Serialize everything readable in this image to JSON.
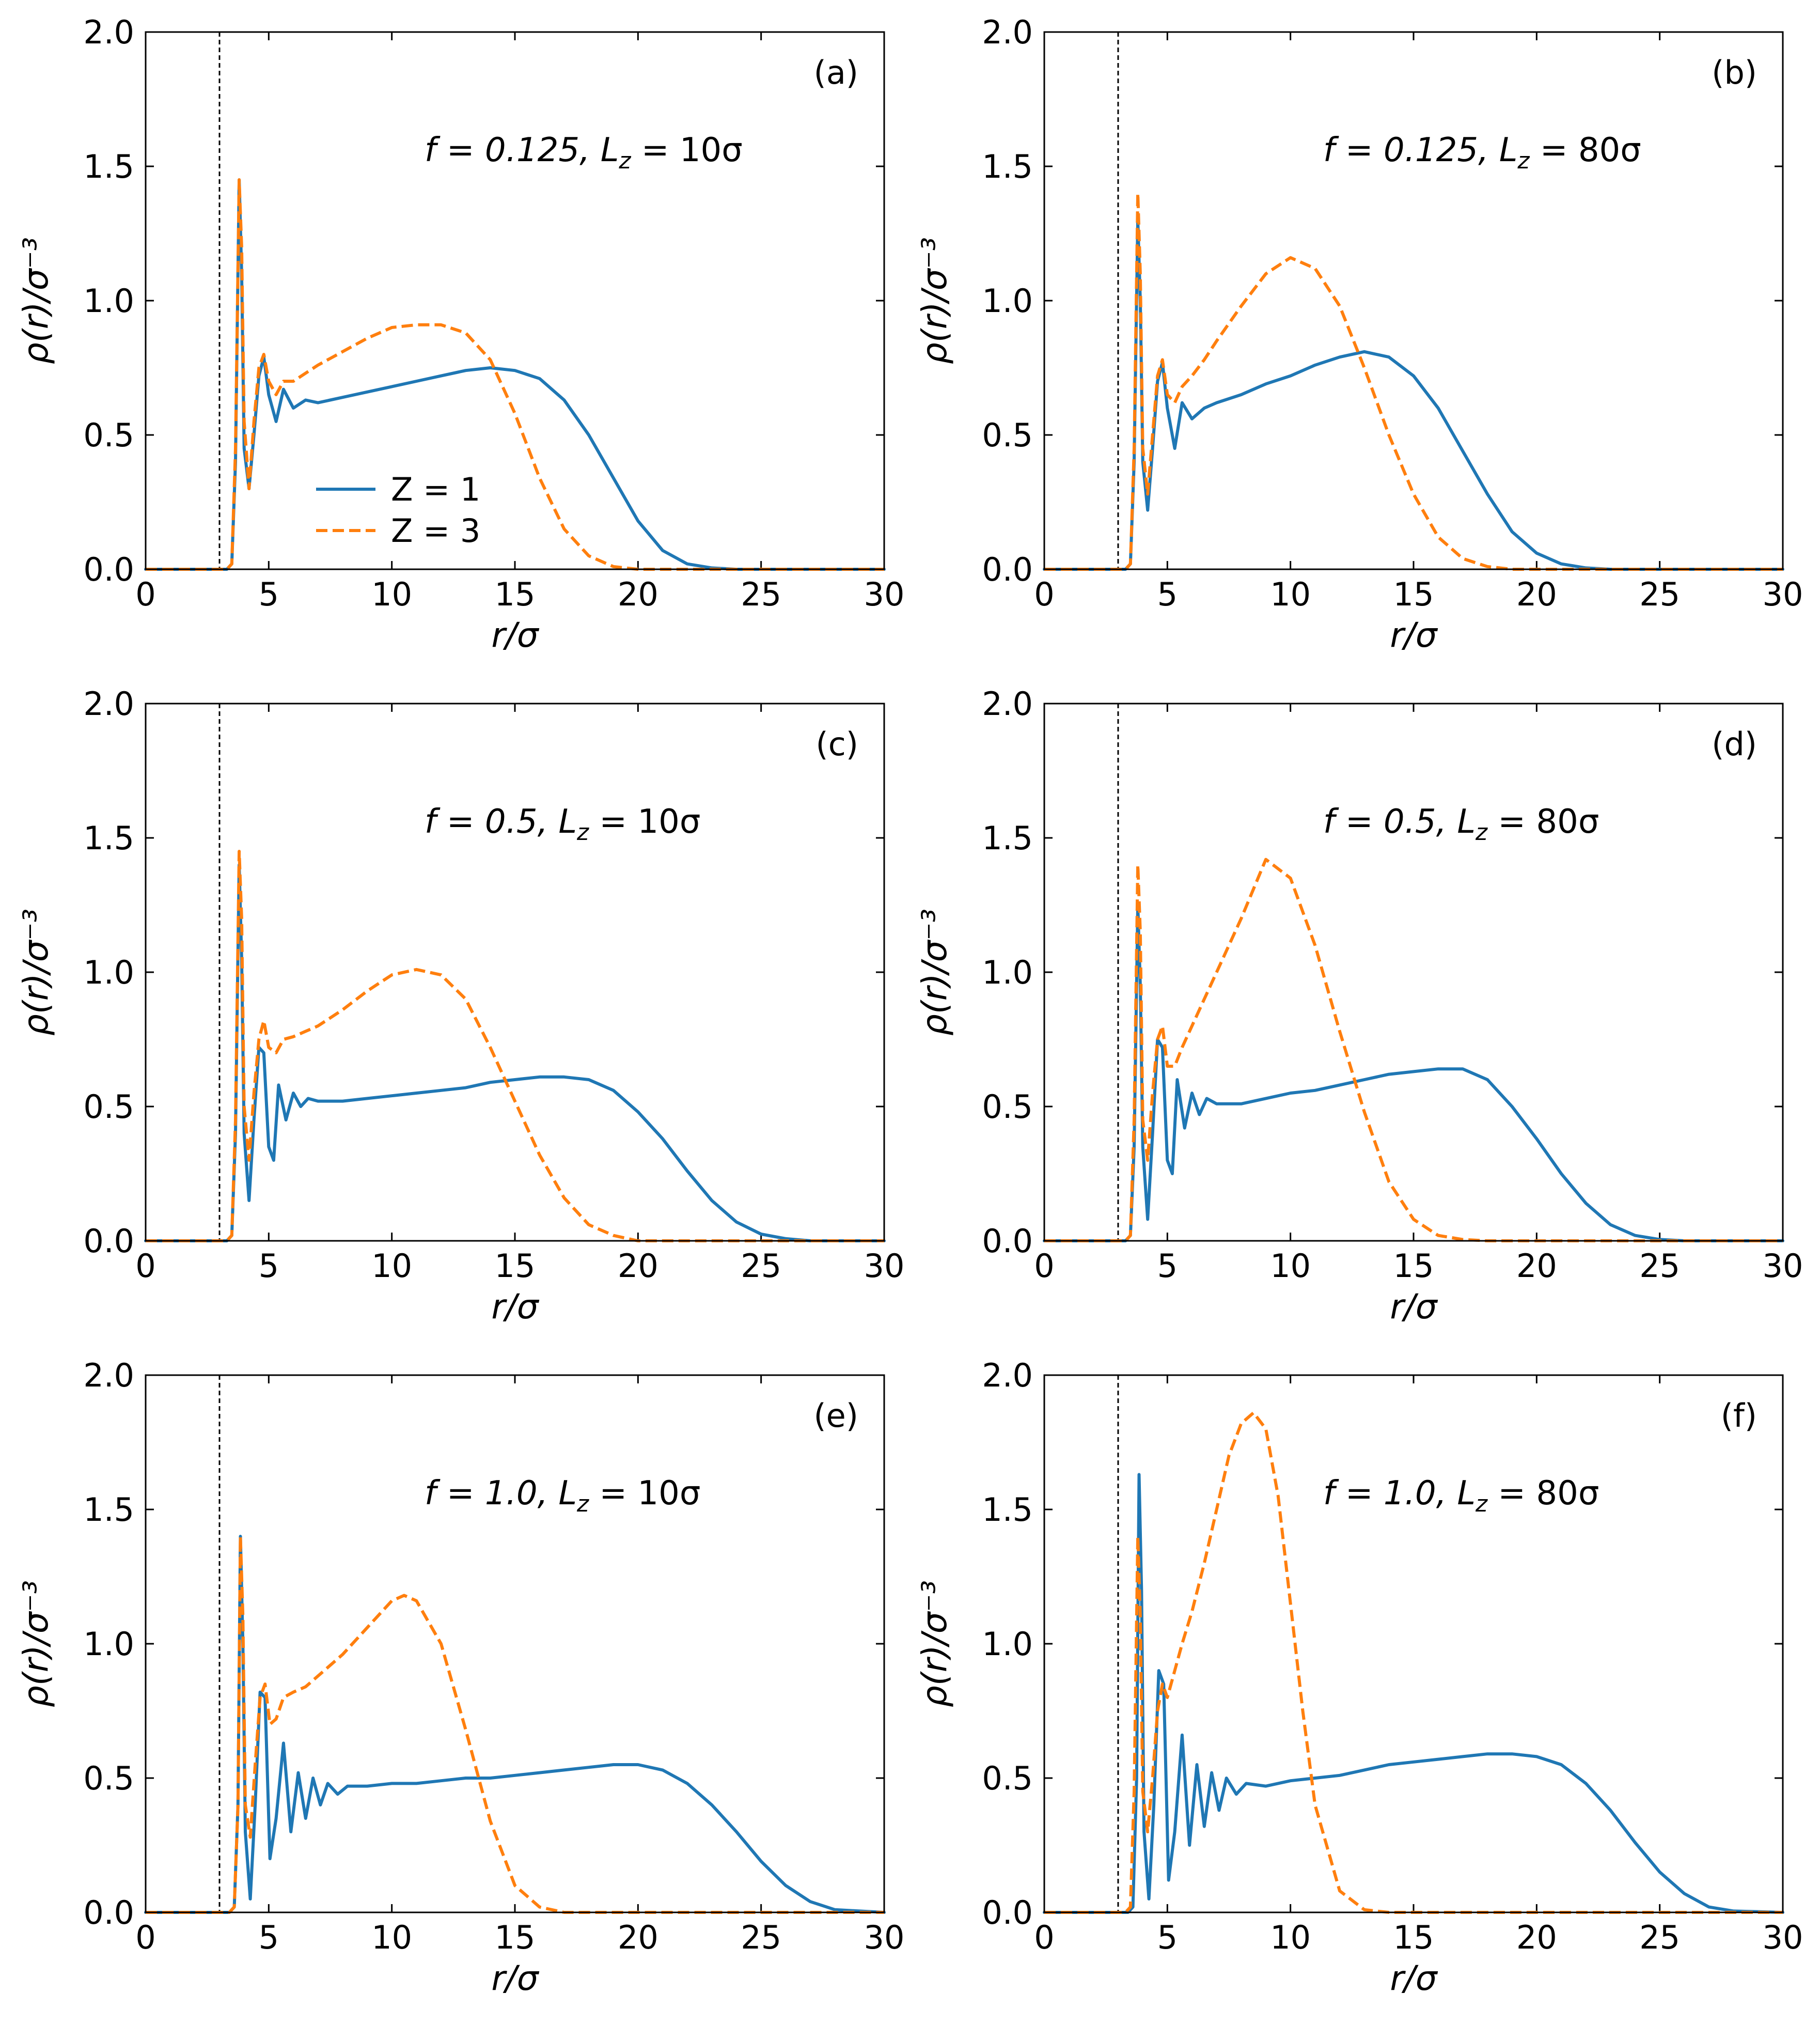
{
  "colors": {
    "z1": "#1f77b4",
    "z3": "#ff7f0e",
    "axis": "#000000"
  },
  "chart_data": [
    {
      "type": "line",
      "panel": "(a)",
      "annotation": {
        "f": "f = 0.125,",
        "L": "L",
        "sub": "z",
        "rest": " = 10σ"
      },
      "xlabel": "r/σ",
      "ylabel": "ρ(r)/σ⁻³",
      "xlim": [
        0,
        30
      ],
      "ylim": [
        0,
        2
      ],
      "xticks": [
        "0",
        "5",
        "10",
        "15",
        "20",
        "25",
        "30"
      ],
      "yticks": [
        "0.0",
        "0.5",
        "1.0",
        "1.5",
        "2.0"
      ],
      "wall_x": 3.0,
      "legend": [
        {
          "name": "Z = 1",
          "style": "solid"
        },
        {
          "name": "Z = 3",
          "style": "dashed"
        }
      ],
      "series": [
        {
          "name": "Z = 1",
          "style": "solid",
          "x": [
            0,
            3.3,
            3.5,
            3.65,
            3.8,
            3.9,
            4.0,
            4.2,
            4.4,
            4.6,
            4.8,
            5.0,
            5.3,
            5.6,
            6.0,
            6.5,
            7,
            8,
            9,
            10,
            11,
            12,
            13,
            14,
            15,
            16,
            17,
            18,
            19,
            20,
            21,
            22,
            23,
            24,
            25,
            30
          ],
          "y": [
            0,
            0,
            0.02,
            0.4,
            1.45,
            1.1,
            0.45,
            0.3,
            0.5,
            0.72,
            0.79,
            0.65,
            0.55,
            0.67,
            0.6,
            0.63,
            0.62,
            0.64,
            0.66,
            0.68,
            0.7,
            0.72,
            0.74,
            0.75,
            0.74,
            0.71,
            0.63,
            0.5,
            0.34,
            0.18,
            0.07,
            0.02,
            0.005,
            0,
            0,
            0
          ]
        },
        {
          "name": "Z = 3",
          "style": "dashed",
          "x": [
            0,
            3.3,
            3.5,
            3.65,
            3.8,
            3.9,
            4.0,
            4.2,
            4.4,
            4.6,
            4.8,
            5.0,
            5.3,
            5.6,
            6.0,
            6.5,
            7,
            8,
            9,
            10,
            11,
            12,
            13,
            14,
            15,
            16,
            17,
            18,
            19,
            20,
            30
          ],
          "y": [
            0,
            0,
            0.02,
            0.45,
            1.45,
            1.2,
            0.55,
            0.3,
            0.55,
            0.75,
            0.8,
            0.7,
            0.65,
            0.7,
            0.7,
            0.73,
            0.76,
            0.81,
            0.86,
            0.9,
            0.91,
            0.91,
            0.88,
            0.78,
            0.58,
            0.34,
            0.15,
            0.05,
            0.01,
            0,
            0
          ]
        }
      ]
    },
    {
      "type": "line",
      "panel": "(b)",
      "annotation": {
        "f": "f = 0.125,",
        "L": "L",
        "sub": "z",
        "rest": " = 80σ"
      },
      "xlabel": "r/σ",
      "ylabel": "ρ(r)/σ⁻³",
      "xlim": [
        0,
        30
      ],
      "ylim": [
        0,
        2
      ],
      "xticks": [
        "0",
        "5",
        "10",
        "15",
        "20",
        "25",
        "30"
      ],
      "yticks": [
        "0.0",
        "0.5",
        "1.0",
        "1.5",
        "2.0"
      ],
      "wall_x": 3.0,
      "legend": [],
      "series": [
        {
          "name": "Z = 1",
          "style": "solid",
          "x": [
            0,
            3.3,
            3.5,
            3.65,
            3.8,
            3.9,
            4.0,
            4.2,
            4.4,
            4.6,
            4.8,
            5.0,
            5.3,
            5.6,
            6.0,
            6.5,
            7,
            8,
            9,
            10,
            11,
            12,
            13,
            14,
            15,
            16,
            17,
            18,
            19,
            20,
            21,
            22,
            23,
            30
          ],
          "y": [
            0,
            0,
            0.02,
            0.4,
            1.3,
            1.0,
            0.4,
            0.22,
            0.45,
            0.7,
            0.77,
            0.6,
            0.45,
            0.62,
            0.56,
            0.6,
            0.62,
            0.65,
            0.69,
            0.72,
            0.76,
            0.79,
            0.81,
            0.79,
            0.72,
            0.6,
            0.44,
            0.28,
            0.14,
            0.06,
            0.02,
            0.005,
            0,
            0
          ]
        },
        {
          "name": "Z = 3",
          "style": "dashed",
          "x": [
            0,
            3.3,
            3.5,
            3.65,
            3.8,
            3.9,
            4.0,
            4.2,
            4.4,
            4.6,
            4.8,
            5.0,
            5.3,
            5.6,
            6.0,
            6.5,
            7,
            8,
            9,
            10,
            11,
            12,
            13,
            14,
            15,
            16,
            17,
            18,
            19,
            20,
            30
          ],
          "y": [
            0,
            0,
            0.02,
            0.45,
            1.4,
            1.1,
            0.45,
            0.28,
            0.5,
            0.72,
            0.78,
            0.65,
            0.62,
            0.68,
            0.72,
            0.78,
            0.85,
            0.98,
            1.1,
            1.16,
            1.12,
            0.98,
            0.75,
            0.5,
            0.28,
            0.12,
            0.04,
            0.01,
            0,
            0,
            0
          ]
        }
      ]
    },
    {
      "type": "line",
      "panel": "(c)",
      "annotation": {
        "f": "f = 0.5,",
        "L": "L",
        "sub": "z",
        "rest": " = 10σ"
      },
      "xlabel": "r/σ",
      "ylabel": "ρ(r)/σ⁻³",
      "xlim": [
        0,
        30
      ],
      "ylim": [
        0,
        2
      ],
      "xticks": [
        "0",
        "5",
        "10",
        "15",
        "20",
        "25",
        "30"
      ],
      "yticks": [
        "0.0",
        "0.5",
        "1.0",
        "1.5",
        "2.0"
      ],
      "wall_x": 3.0,
      "legend": [],
      "series": [
        {
          "name": "Z = 1",
          "style": "solid",
          "x": [
            0,
            3.3,
            3.5,
            3.65,
            3.8,
            3.9,
            4.0,
            4.2,
            4.4,
            4.6,
            4.8,
            5.0,
            5.2,
            5.4,
            5.7,
            6.0,
            6.3,
            6.6,
            7,
            8,
            9,
            10,
            11,
            12,
            13,
            14,
            15,
            16,
            17,
            18,
            19,
            20,
            21,
            22,
            23,
            24,
            25,
            26,
            27,
            30
          ],
          "y": [
            0,
            0,
            0.02,
            0.4,
            1.4,
            1.05,
            0.4,
            0.15,
            0.45,
            0.72,
            0.7,
            0.35,
            0.3,
            0.58,
            0.45,
            0.55,
            0.5,
            0.53,
            0.52,
            0.52,
            0.53,
            0.54,
            0.55,
            0.56,
            0.57,
            0.59,
            0.6,
            0.61,
            0.61,
            0.6,
            0.56,
            0.48,
            0.38,
            0.26,
            0.15,
            0.07,
            0.025,
            0.008,
            0,
            0
          ]
        },
        {
          "name": "Z = 3",
          "style": "dashed",
          "x": [
            0,
            3.3,
            3.5,
            3.65,
            3.8,
            3.9,
            4.0,
            4.2,
            4.4,
            4.6,
            4.8,
            5.0,
            5.3,
            5.6,
            6.0,
            6.5,
            7,
            8,
            9,
            10,
            11,
            12,
            13,
            14,
            15,
            16,
            17,
            18,
            19,
            20,
            30
          ],
          "y": [
            0,
            0,
            0.02,
            0.45,
            1.45,
            1.2,
            0.5,
            0.3,
            0.55,
            0.75,
            0.82,
            0.72,
            0.7,
            0.75,
            0.76,
            0.78,
            0.8,
            0.86,
            0.93,
            0.99,
            1.01,
            0.99,
            0.9,
            0.72,
            0.52,
            0.32,
            0.16,
            0.06,
            0.02,
            0,
            0
          ]
        }
      ]
    },
    {
      "type": "line",
      "panel": "(d)",
      "annotation": {
        "f": "f = 0.5,",
        "L": "L",
        "sub": "z",
        "rest": " = 80σ"
      },
      "xlabel": "r/σ",
      "ylabel": "ρ(r)/σ⁻³",
      "xlim": [
        0,
        30
      ],
      "ylim": [
        0,
        2
      ],
      "xticks": [
        "0",
        "5",
        "10",
        "15",
        "20",
        "25",
        "30"
      ],
      "yticks": [
        "0.0",
        "0.5",
        "1.0",
        "1.5",
        "2.0"
      ],
      "wall_x": 3.0,
      "legend": [],
      "series": [
        {
          "name": "Z = 1",
          "style": "solid",
          "x": [
            0,
            3.3,
            3.5,
            3.65,
            3.8,
            3.9,
            4.0,
            4.2,
            4.4,
            4.6,
            4.8,
            5.0,
            5.2,
            5.4,
            5.7,
            6.0,
            6.3,
            6.6,
            7,
            8,
            9,
            10,
            11,
            12,
            13,
            14,
            15,
            16,
            17,
            18,
            19,
            20,
            21,
            22,
            23,
            24,
            25,
            26,
            30
          ],
          "y": [
            0,
            0,
            0.02,
            0.35,
            1.25,
            0.95,
            0.35,
            0.08,
            0.4,
            0.75,
            0.72,
            0.3,
            0.25,
            0.6,
            0.42,
            0.55,
            0.47,
            0.53,
            0.51,
            0.51,
            0.53,
            0.55,
            0.56,
            0.58,
            0.6,
            0.62,
            0.63,
            0.64,
            0.64,
            0.6,
            0.5,
            0.38,
            0.25,
            0.14,
            0.06,
            0.02,
            0.005,
            0,
            0
          ]
        },
        {
          "name": "Z = 3",
          "style": "dashed",
          "x": [
            0,
            3.3,
            3.5,
            3.65,
            3.8,
            3.9,
            4.0,
            4.2,
            4.4,
            4.6,
            4.8,
            5.0,
            5.3,
            5.6,
            6.0,
            6.5,
            7,
            8,
            9,
            10,
            11,
            12,
            13,
            14,
            15,
            16,
            17,
            18,
            30
          ],
          "y": [
            0,
            0,
            0.02,
            0.45,
            1.4,
            1.15,
            0.45,
            0.3,
            0.55,
            0.75,
            0.8,
            0.65,
            0.65,
            0.72,
            0.8,
            0.9,
            1.0,
            1.2,
            1.42,
            1.35,
            1.1,
            0.78,
            0.48,
            0.22,
            0.08,
            0.02,
            0.005,
            0,
            0
          ]
        }
      ]
    },
    {
      "type": "line",
      "panel": "(e)",
      "annotation": {
        "f": "f = 1.0,",
        "L": "L",
        "sub": "z",
        "rest": " = 10σ"
      },
      "xlabel": "r/σ",
      "ylabel": "ρ(r)/σ⁻³",
      "xlim": [
        0,
        30
      ],
      "ylim": [
        0,
        2
      ],
      "xticks": [
        "0",
        "5",
        "10",
        "15",
        "20",
        "25",
        "30"
      ],
      "yticks": [
        "0.0",
        "0.5",
        "1.0",
        "1.5",
        "2.0"
      ],
      "wall_x": 3.0,
      "legend": [],
      "series": [
        {
          "name": "Z = 1",
          "style": "solid",
          "x": [
            0,
            3.4,
            3.6,
            3.75,
            3.85,
            3.95,
            4.05,
            4.25,
            4.45,
            4.65,
            4.85,
            5.05,
            5.3,
            5.6,
            5.9,
            6.2,
            6.5,
            6.8,
            7.1,
            7.4,
            7.8,
            8.2,
            9,
            10,
            11,
            12,
            13,
            14,
            15,
            16,
            17,
            18,
            19,
            20,
            21,
            22,
            23,
            24,
            25,
            26,
            27,
            28,
            30
          ],
          "y": [
            0,
            0,
            0.02,
            0.4,
            1.4,
            1.0,
            0.3,
            0.05,
            0.4,
            0.82,
            0.8,
            0.2,
            0.35,
            0.63,
            0.3,
            0.52,
            0.35,
            0.5,
            0.4,
            0.48,
            0.44,
            0.47,
            0.47,
            0.48,
            0.48,
            0.49,
            0.5,
            0.5,
            0.51,
            0.52,
            0.53,
            0.54,
            0.55,
            0.55,
            0.53,
            0.48,
            0.4,
            0.3,
            0.19,
            0.1,
            0.04,
            0.01,
            0
          ]
        },
        {
          "name": "Z = 3",
          "style": "dashed",
          "x": [
            0,
            3.4,
            3.6,
            3.75,
            3.85,
            3.95,
            4.05,
            4.25,
            4.45,
            4.65,
            4.85,
            5.05,
            5.3,
            5.6,
            6.0,
            6.5,
            7,
            8,
            9,
            10,
            10.5,
            11,
            12,
            13,
            14,
            15,
            16,
            17,
            30
          ],
          "y": [
            0,
            0,
            0.02,
            0.4,
            1.4,
            1.1,
            0.4,
            0.28,
            0.55,
            0.8,
            0.85,
            0.7,
            0.72,
            0.8,
            0.82,
            0.84,
            0.88,
            0.96,
            1.06,
            1.16,
            1.18,
            1.16,
            1.0,
            0.68,
            0.34,
            0.1,
            0.02,
            0,
            0
          ]
        }
      ]
    },
    {
      "type": "line",
      "panel": "(f)",
      "annotation": {
        "f": "f = 1.0,",
        "L": "L",
        "sub": "z",
        "rest": " = 80σ"
      },
      "xlabel": "r/σ",
      "ylabel": "ρ(r)/σ⁻³",
      "xlim": [
        0,
        30
      ],
      "ylim": [
        0,
        2
      ],
      "xticks": [
        "0",
        "5",
        "10",
        "15",
        "20",
        "25",
        "30"
      ],
      "yticks": [
        "0.0",
        "0.5",
        "1.0",
        "1.5",
        "2.0"
      ],
      "wall_x": 3.0,
      "legend": [],
      "series": [
        {
          "name": "Z = 1",
          "style": "solid",
          "x": [
            0,
            3.4,
            3.6,
            3.75,
            3.85,
            3.95,
            4.05,
            4.25,
            4.45,
            4.65,
            4.85,
            5.05,
            5.3,
            5.6,
            5.9,
            6.2,
            6.5,
            6.8,
            7.1,
            7.4,
            7.8,
            8.2,
            9,
            10,
            11,
            12,
            13,
            14,
            15,
            16,
            17,
            18,
            19,
            20,
            21,
            22,
            23,
            24,
            25,
            26,
            27,
            28,
            30
          ],
          "y": [
            0,
            0,
            0.02,
            0.5,
            1.63,
            1.2,
            0.3,
            0.05,
            0.4,
            0.9,
            0.85,
            0.12,
            0.3,
            0.66,
            0.25,
            0.55,
            0.32,
            0.52,
            0.38,
            0.5,
            0.44,
            0.48,
            0.47,
            0.49,
            0.5,
            0.51,
            0.53,
            0.55,
            0.56,
            0.57,
            0.58,
            0.59,
            0.59,
            0.58,
            0.55,
            0.48,
            0.38,
            0.26,
            0.15,
            0.07,
            0.02,
            0.005,
            0
          ]
        },
        {
          "name": "Z = 3",
          "style": "dashed",
          "x": [
            0,
            3.3,
            3.5,
            3.65,
            3.8,
            3.9,
            4.0,
            4.2,
            4.4,
            4.6,
            4.8,
            5.0,
            5.3,
            5.6,
            6.0,
            6.5,
            7,
            7.5,
            8,
            8.5,
            9,
            9.5,
            10,
            10.5,
            11,
            12,
            13,
            14,
            15,
            30
          ],
          "y": [
            0,
            0,
            0.02,
            0.45,
            1.4,
            1.1,
            0.45,
            0.3,
            0.5,
            0.75,
            0.85,
            0.8,
            0.9,
            1.0,
            1.12,
            1.3,
            1.5,
            1.7,
            1.82,
            1.86,
            1.8,
            1.55,
            1.15,
            0.75,
            0.4,
            0.08,
            0.01,
            0,
            0,
            0
          ]
        }
      ]
    }
  ]
}
